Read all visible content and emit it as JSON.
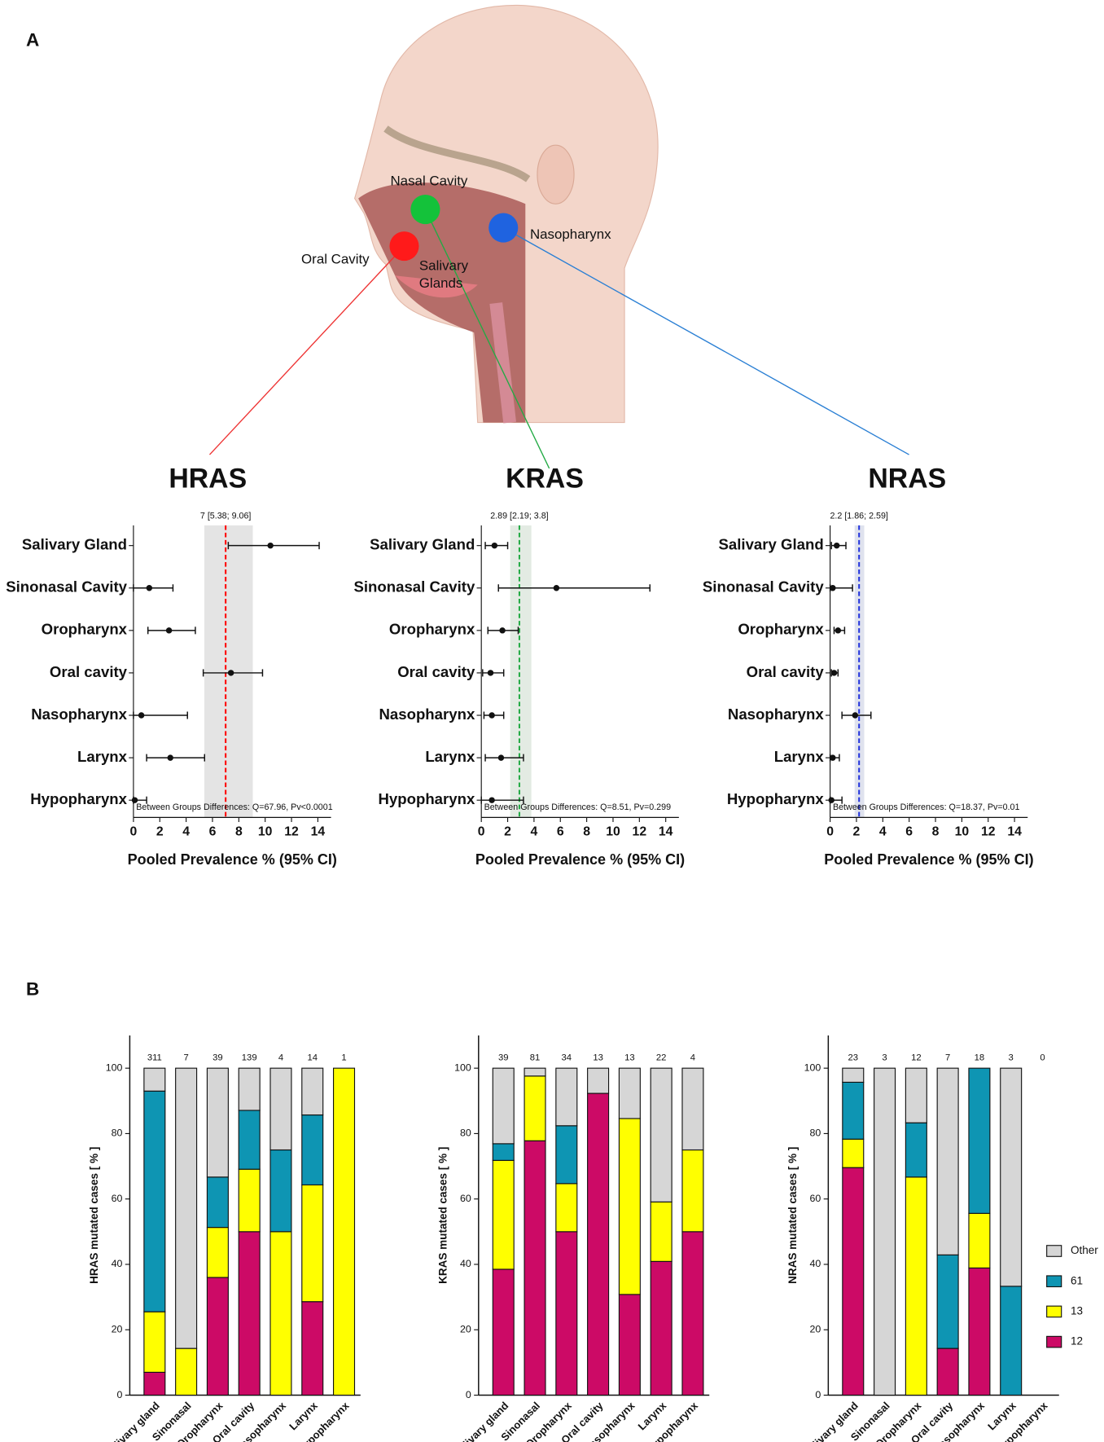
{
  "panels": [
    "A",
    "B"
  ],
  "illustration": {
    "labels": [
      "Nasal Cavity",
      "Nasopharynx",
      "Oral Cavity",
      "Salivary",
      "Glands"
    ]
  },
  "chart_data": [
    {
      "type": "forest",
      "title": "HRAS",
      "categories": [
        "Salivary Gland",
        "Sinonasal Cavity",
        "Oropharynx",
        "Oral cavity",
        "Nasopharynx",
        "Larynx",
        "Hypopharynx"
      ],
      "values": [
        10.4,
        1.2,
        2.7,
        7.4,
        0.6,
        2.8,
        0.1
      ],
      "lower": [
        7.2,
        0,
        1.1,
        5.3,
        0,
        1.0,
        0
      ],
      "upper": [
        14.1,
        3.0,
        4.7,
        9.8,
        4.1,
        5.4,
        1.0
      ],
      "pooled": {
        "value": 7,
        "lower": 5.38,
        "upper": 9.06,
        "label": "7 [5.38; 9.06]"
      },
      "pooled_color": "#ff0000",
      "band_color": "#e4e4e4",
      "annotation": "Between Groups Differences: Q=67.96, Pv<0.0001",
      "xlabel": "Pooled Prevalence % (95% CI)",
      "xlim": [
        0,
        15
      ],
      "xticks": [
        0,
        2,
        4,
        6,
        8,
        10,
        12,
        14
      ]
    },
    {
      "type": "forest",
      "title": "KRAS",
      "categories": [
        "Salivary Gland",
        "Sinonasal Cavity",
        "Oropharynx",
        "Oral cavity",
        "Nasopharynx",
        "Larynx",
        "Hypopharynx"
      ],
      "values": [
        1.0,
        5.7,
        1.6,
        0.7,
        0.8,
        1.5,
        0.8
      ],
      "lower": [
        0.3,
        1.3,
        0.5,
        0.1,
        0.2,
        0.3,
        0
      ],
      "upper": [
        2.0,
        12.8,
        2.8,
        1.7,
        1.7,
        3.2,
        3.2
      ],
      "pooled": {
        "value": 2.89,
        "lower": 2.19,
        "upper": 3.8,
        "label": "2.89 [2.19; 3.8]"
      },
      "pooled_color": "#22aa44",
      "band_color": "#e3ebe3",
      "annotation": "Between Groups Differences: Q=8.51, Pv=0.299",
      "xlabel": "Pooled Prevalence % (95% CI)",
      "xlim": [
        0,
        15
      ],
      "xticks": [
        0,
        2,
        4,
        6,
        8,
        10,
        12,
        14
      ]
    },
    {
      "type": "forest",
      "title": "NRAS",
      "categories": [
        "Salivary Gland",
        "Sinonasal Cavity",
        "Oropharynx",
        "Oral cavity",
        "Nasopharynx",
        "Larynx",
        "Hypopharynx"
      ],
      "values": [
        0.5,
        0.2,
        0.6,
        0.3,
        1.9,
        0.2,
        0.1
      ],
      "lower": [
        0.1,
        0,
        0.3,
        0.1,
        0.9,
        0,
        0
      ],
      "upper": [
        1.2,
        1.7,
        1.1,
        0.6,
        3.1,
        0.7,
        0.9
      ],
      "pooled": {
        "value": 2.2,
        "lower": 1.86,
        "upper": 2.59,
        "label": "2.2 [1.86; 2.59]"
      },
      "pooled_color": "#2233dd",
      "band_color": "#dfe2ee",
      "annotation": "Between Groups Differences: Q=18.37, Pv=0.01",
      "xlabel": "Pooled Prevalence % (95% CI)",
      "xlim": [
        0,
        15
      ],
      "xticks": [
        0,
        2,
        4,
        6,
        8,
        10,
        12,
        14
      ]
    },
    {
      "type": "stacked_bar",
      "ylabel": "HRAS mutated cases [ % ]",
      "categories": [
        "Salivary gland",
        "Sinonasal",
        "Oropharynx",
        "Oral cavity",
        "Nasopharynx",
        "Larynx",
        "Hypopharynx"
      ],
      "n": [
        311,
        7,
        39,
        139,
        4,
        14,
        1
      ],
      "series": [
        {
          "name": "12",
          "color": "#cc0a66",
          "values": [
            7,
            0,
            36,
            50,
            0,
            28.6,
            0
          ]
        },
        {
          "name": "13",
          "color": "#ffff00",
          "values": [
            18.5,
            14.3,
            15.3,
            19.1,
            50,
            35.7,
            100
          ]
        },
        {
          "name": "61",
          "color": "#0e95b3",
          "values": [
            67.5,
            0,
            15.4,
            18,
            25,
            21.4,
            0
          ]
        },
        {
          "name": "Other",
          "color": "#d6d6d6",
          "values": [
            7,
            85.7,
            33.3,
            12.9,
            25,
            14.3,
            0
          ]
        }
      ],
      "ylim": [
        0,
        110
      ],
      "yticks": [
        0,
        20,
        40,
        60,
        80,
        100
      ],
      "legend": false
    },
    {
      "type": "stacked_bar",
      "ylabel": "KRAS mutated cases [ % ]",
      "categories": [
        "Salivary gland",
        "Sinonasal",
        "Oropharynx",
        "Oral cavity",
        "Nasopharynx",
        "Larynx",
        "Hypopharynx"
      ],
      "n": [
        39,
        81,
        34,
        13,
        13,
        22,
        4
      ],
      "series": [
        {
          "name": "12",
          "color": "#cc0a66",
          "values": [
            38.5,
            77.8,
            50,
            92.3,
            30.8,
            40.9,
            50
          ]
        },
        {
          "name": "13",
          "color": "#ffff00",
          "values": [
            33.3,
            19.8,
            14.7,
            0,
            53.8,
            18.2,
            25
          ]
        },
        {
          "name": "61",
          "color": "#0e95b3",
          "values": [
            5.1,
            0,
            17.7,
            0,
            0,
            0,
            0
          ]
        },
        {
          "name": "Other",
          "color": "#d6d6d6",
          "values": [
            23.1,
            2.4,
            17.6,
            7.7,
            15.4,
            40.9,
            25
          ]
        }
      ],
      "ylim": [
        0,
        110
      ],
      "yticks": [
        0,
        20,
        40,
        60,
        80,
        100
      ],
      "legend": false
    },
    {
      "type": "stacked_bar",
      "ylabel": "NRAS mutated cases [ % ]",
      "categories": [
        "Salivary gland",
        "Sinonasal",
        "Oropharynx",
        "Oral cavity",
        "Nasopharynx",
        "Larynx",
        "Hypopharynx"
      ],
      "n": [
        23,
        3,
        12,
        7,
        18,
        3,
        0
      ],
      "series": [
        {
          "name": "12",
          "color": "#cc0a66",
          "values": [
            69.6,
            0,
            0,
            14.3,
            38.9,
            0,
            0
          ]
        },
        {
          "name": "13",
          "color": "#ffff00",
          "values": [
            8.7,
            0,
            66.7,
            0,
            16.7,
            0,
            0
          ]
        },
        {
          "name": "61",
          "color": "#0e95b3",
          "values": [
            17.4,
            0,
            16.6,
            28.6,
            44.4,
            33.3,
            0
          ]
        },
        {
          "name": "Other",
          "color": "#d6d6d6",
          "values": [
            4.3,
            100,
            16.7,
            57.1,
            0,
            66.7,
            0
          ]
        }
      ],
      "ylim": [
        0,
        110
      ],
      "yticks": [
        0,
        20,
        40,
        60,
        80,
        100
      ],
      "legend": true
    }
  ]
}
